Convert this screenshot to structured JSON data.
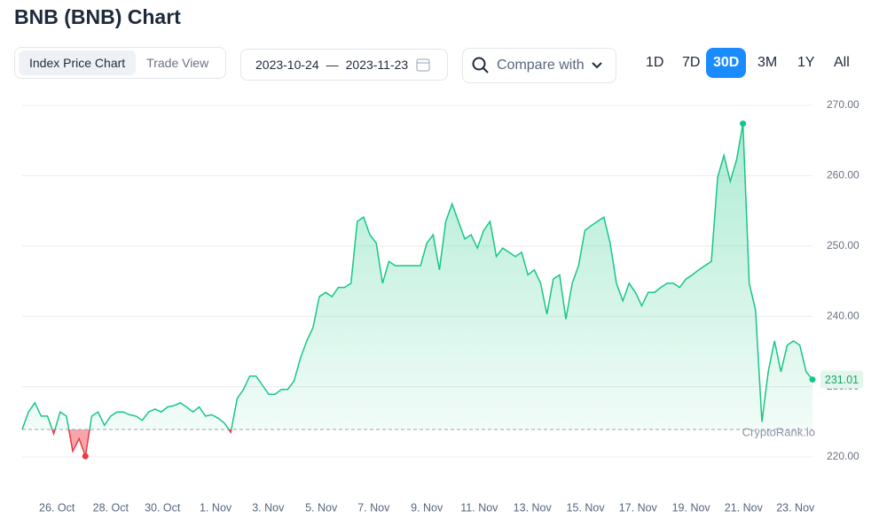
{
  "header": {
    "title": "BNB (BNB) Chart"
  },
  "controls": {
    "tabs": [
      "Index Price Chart",
      "Trade View"
    ],
    "active_tab": "Index Price Chart",
    "date_from": "2023-10-24",
    "date_separator": "—",
    "date_to": "2023-11-23",
    "compare": "Compare with",
    "ranges": [
      "1D",
      "7D",
      "30D",
      "3M",
      "1Y",
      "All"
    ],
    "active_range": "30D"
  },
  "chart_data": {
    "type": "line",
    "watermark": "CryptoRank.io",
    "grid": true,
    "series": [
      {
        "name": "BNB",
        "color": "#16c784",
        "down_color": "#ea3943",
        "values": [
          223.9,
          226.4,
          227.7,
          225.8,
          225.8,
          223.3,
          226.4,
          225.8,
          220.8,
          222.6,
          220.1,
          225.8,
          226.4,
          224.5,
          225.8,
          226.4,
          226.4,
          226.0,
          225.8,
          225.2,
          226.4,
          226.8,
          226.4,
          227.1,
          227.3,
          227.7,
          227.1,
          226.4,
          227.1,
          225.8,
          226.0,
          225.5,
          224.8,
          223.5,
          228.3,
          229.6,
          231.5,
          231.5,
          230.2,
          228.9,
          228.9,
          229.6,
          229.6,
          230.8,
          234.0,
          236.5,
          238.4,
          242.8,
          243.4,
          242.8,
          244.1,
          244.1,
          244.7,
          253.5,
          254.1,
          251.6,
          250.4,
          244.7,
          247.8,
          247.2,
          247.2,
          247.2,
          247.2,
          247.2,
          250.4,
          251.6,
          246.6,
          253.5,
          256.0,
          253.5,
          251.0,
          251.6,
          249.7,
          252.2,
          253.5,
          248.5,
          249.7,
          249.1,
          248.5,
          249.1,
          245.9,
          246.6,
          244.7,
          240.3,
          245.3,
          245.9,
          239.6,
          244.7,
          247.2,
          252.2,
          252.9,
          253.5,
          254.1,
          250.4,
          244.7,
          242.2,
          244.7,
          243.4,
          241.5,
          243.4,
          243.4,
          244.1,
          244.7,
          244.7,
          244.1,
          245.3,
          245.9,
          246.6,
          247.2,
          247.8,
          259.8,
          262.9,
          259.2,
          262.3,
          267.4,
          244.7,
          240.9,
          225.0,
          232.1,
          236.5,
          232.1,
          235.9,
          236.5,
          235.9,
          232.1,
          231.01
        ]
      }
    ],
    "xlim": [
      0,
      125
    ],
    "xticks": [
      {
        "value": 5.5,
        "label": "26. Oct"
      },
      {
        "value": 14.0,
        "label": "28. Oct"
      },
      {
        "value": 22.2,
        "label": "30. Oct"
      },
      {
        "value": 30.6,
        "label": "1. Nov"
      },
      {
        "value": 38.9,
        "label": "3. Nov"
      },
      {
        "value": 47.3,
        "label": "5. Nov"
      },
      {
        "value": 55.6,
        "label": "7. Nov"
      },
      {
        "value": 64.0,
        "label": "9. Nov"
      },
      {
        "value": 72.3,
        "label": "11. Nov"
      },
      {
        "value": 80.7,
        "label": "13. Nov"
      },
      {
        "value": 89.1,
        "label": "15. Nov"
      },
      {
        "value": 97.4,
        "label": "17. Nov"
      },
      {
        "value": 105.8,
        "label": "19. Nov"
      },
      {
        "value": 114.1,
        "label": "21. Nov"
      },
      {
        "value": 122.3,
        "label": "23. Nov"
      }
    ],
    "ylim": [
      220,
      270
    ],
    "yticks": [
      {
        "value": 220,
        "label": "220.00"
      },
      {
        "value": 230,
        "label": "230.00"
      },
      {
        "value": 240,
        "label": "240.00"
      },
      {
        "value": 250,
        "label": "250.00"
      },
      {
        "value": 260,
        "label": "260.00"
      },
      {
        "value": 270,
        "label": "270.00"
      }
    ]
  }
}
